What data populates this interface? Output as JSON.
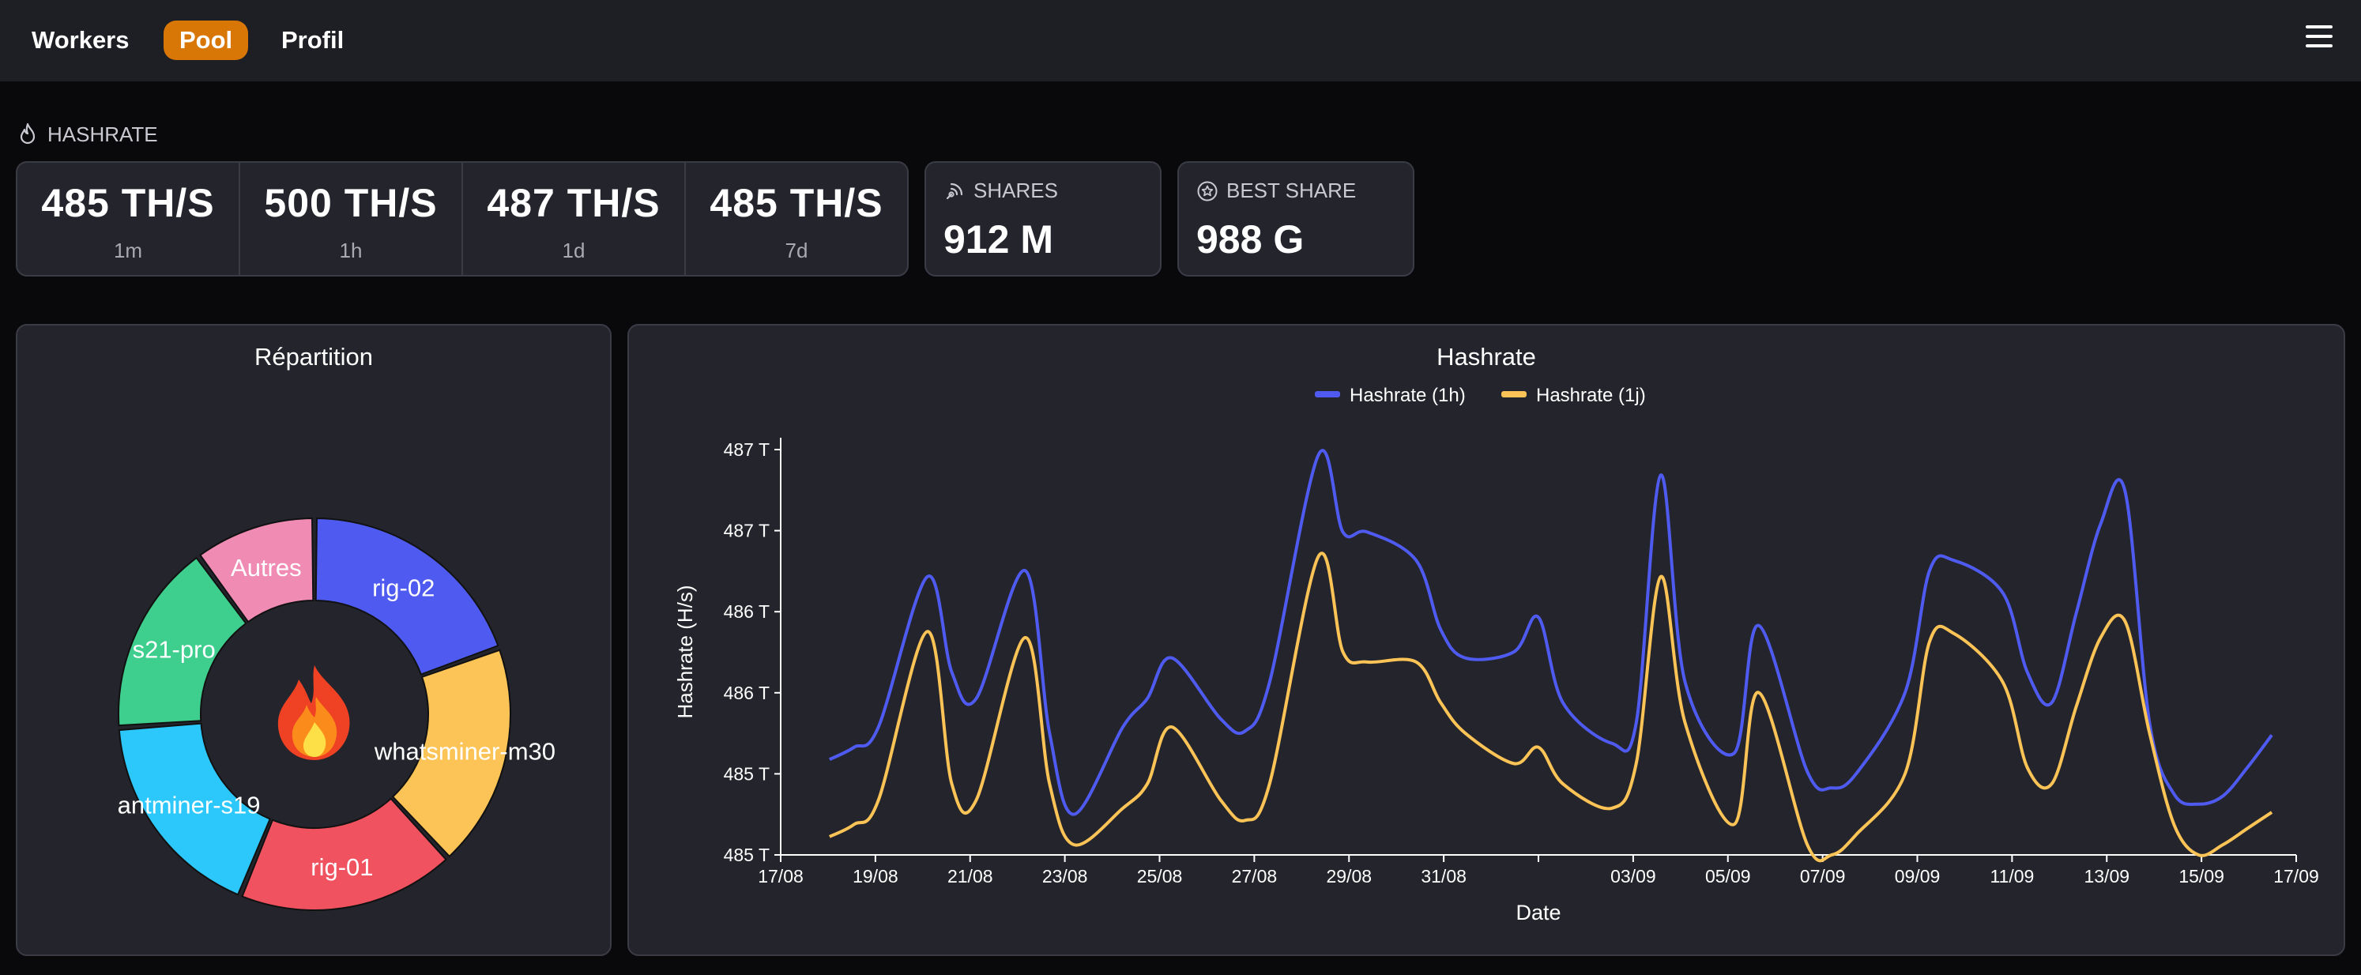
{
  "nav": {
    "items": [
      {
        "label": "Workers",
        "active": false
      },
      {
        "label": "Pool",
        "active": true
      },
      {
        "label": "Profil",
        "active": false
      }
    ],
    "menu_icon": "hamburger-menu-icon",
    "accent": "#d97706"
  },
  "hashrate": {
    "label": "HASHRATE",
    "icon": "flame-icon",
    "cells": [
      {
        "value": "485 TH/S",
        "period": "1m"
      },
      {
        "value": "500 TH/S",
        "period": "1h"
      },
      {
        "value": "487 TH/S",
        "period": "1d"
      },
      {
        "value": "485 TH/S",
        "period": "7d"
      }
    ]
  },
  "shares": {
    "label": "SHARES",
    "icon": "broadcast-icon",
    "value": "912 M"
  },
  "best_share": {
    "label": "BEST SHARE",
    "icon": "star-badge-icon",
    "value": "988 G"
  },
  "repartition": {
    "title": "Répartition",
    "center_icon": "fire-emoji-icon"
  },
  "hashrate_chart": {
    "title": "Hashrate"
  },
  "chart_data": [
    {
      "type": "pie",
      "title": "Répartition",
      "donut": true,
      "slices": [
        {
          "label": "rig-02",
          "value": 19.5,
          "color": "#4f5bf0"
        },
        {
          "label": "whatsminer-m30",
          "value": 18.6,
          "color": "#fcc456"
        },
        {
          "label": "rig-01",
          "value": 18.1,
          "color": "#f0525f"
        },
        {
          "label": "antminer-s19",
          "value": 17.7,
          "color": "#2cc8fb"
        },
        {
          "label": "s21-pro",
          "value": 16.0,
          "color": "#3ecf8e"
        },
        {
          "label": "Autres",
          "value": 10.1,
          "color": "#f08bb4"
        }
      ]
    },
    {
      "type": "line",
      "title": "Hashrate",
      "xlabel": "Date",
      "ylabel": "Hashrate (H/s)",
      "legend_position": "top",
      "x_ticks": [
        "17/08",
        "19/08",
        "21/08",
        "23/08",
        "25/08",
        "27/08",
        "29/08",
        "31/08",
        "",
        "03/09",
        "05/09",
        "07/09",
        "09/09",
        "11/09",
        "13/09",
        "15/09",
        "17/09"
      ],
      "y_ticks": [
        "485 T",
        "485 T",
        "486 T",
        "486 T",
        "487 T",
        "487 T"
      ],
      "x_range_days": [
        0,
        31
      ],
      "x_days": [
        1,
        1.5,
        2,
        3,
        3.5,
        4,
        5,
        5.5,
        6,
        7,
        7.5,
        8,
        9,
        9.5,
        10,
        11,
        11.5,
        12,
        13,
        13.5,
        14,
        15,
        15.5,
        16,
        17,
        17.5,
        18,
        18.5,
        19.5,
        20,
        21,
        21.5,
        22,
        23,
        23.5,
        24,
        25,
        25.5,
        26,
        26.5,
        27,
        27.5,
        28,
        28.5,
        29,
        29.5,
        30,
        30.5
      ],
      "series": [
        {
          "name": "Hashrate (1h)",
          "color": "#4f5bf0",
          "values": [
            485.42,
            485.48,
            485.58,
            486.32,
            485.85,
            485.72,
            486.35,
            485.55,
            485.15,
            485.58,
            485.72,
            485.92,
            485.62,
            485.56,
            485.8,
            486.92,
            486.54,
            486.54,
            486.4,
            486.06,
            485.92,
            485.95,
            486.12,
            485.7,
            485.5,
            485.6,
            486.82,
            485.8,
            485.45,
            486.08,
            485.36,
            485.28,
            485.35,
            485.75,
            486.35,
            486.4,
            486.24,
            485.85,
            485.7,
            486.14,
            486.58,
            486.74,
            485.6,
            485.25,
            485.2,
            485.24,
            485.38,
            485.54
          ]
        },
        {
          "name": "Hashrate (1j)",
          "color": "#fcc456",
          "values": [
            485.04,
            485.1,
            485.22,
            486.05,
            485.3,
            485.22,
            486.02,
            485.3,
            485.0,
            485.18,
            485.3,
            485.58,
            485.22,
            485.12,
            485.3,
            486.42,
            485.95,
            485.9,
            485.9,
            485.7,
            485.55,
            485.4,
            485.48,
            485.3,
            485.18,
            485.4,
            486.32,
            485.6,
            485.1,
            485.75,
            485.0,
            484.95,
            485.05,
            485.35,
            486.0,
            486.04,
            485.8,
            485.38,
            485.3,
            485.68,
            486.02,
            486.1,
            485.55,
            485.1,
            484.95,
            485.0,
            485.08,
            485.16
          ]
        }
      ]
    }
  ]
}
